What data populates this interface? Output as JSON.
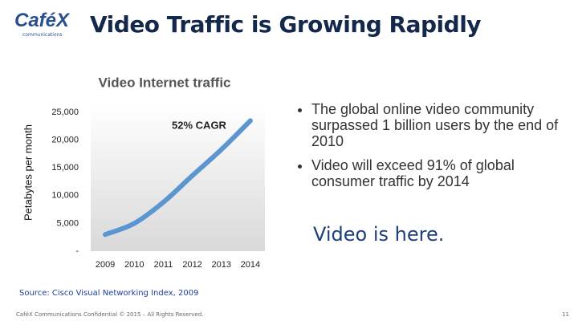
{
  "logo": {
    "name": "CaféX",
    "sub": "communications"
  },
  "title": "Video Traffic is Growing Rapidly",
  "bullets": [
    "The global online video community surpassed 1 billion users by the end of 2010",
    "Video will exceed 91% of global consumer traffic by 2014"
  ],
  "tagline": "Video is here.",
  "source": "Source:  Cisco Visual Networking Index, 2009",
  "footer": "CaféX Communications Confidential © 2015 – All Rights Reserved.",
  "page_number": "11",
  "chart_data": {
    "type": "line",
    "title": "Video Internet traffic",
    "y_label": "Petabytes per month",
    "annotation": "52% CAGR",
    "categories": [
      "2009",
      "2010",
      "2011",
      "2012",
      "2013",
      "2014"
    ],
    "series": [
      {
        "name": "Video Internet traffic",
        "color": "#5b96d0",
        "values": [
          3000,
          5000,
          8800,
          13600,
          18300,
          23500
        ]
      }
    ],
    "ylim": [
      0,
      25000
    ],
    "yticks": [
      {
        "value": 0,
        "label": "-"
      },
      {
        "value": 5000,
        "label": "5,000"
      },
      {
        "value": 10000,
        "label": "10,000"
      },
      {
        "value": 15000,
        "label": "15,000"
      },
      {
        "value": 20000,
        "label": "20,000"
      },
      {
        "value": 25000,
        "label": "25,000"
      }
    ]
  }
}
